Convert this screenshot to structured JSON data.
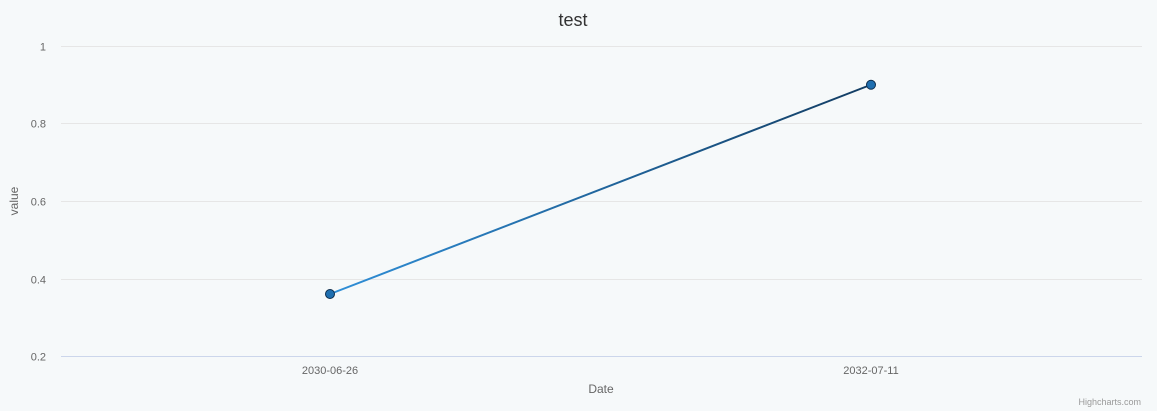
{
  "chart_data": {
    "type": "line",
    "title": "test",
    "xlabel": "Date",
    "ylabel": "value",
    "x": [
      "2030-06-26",
      "2032-07-11"
    ],
    "series": [
      {
        "values": [
          0.36,
          0.9
        ]
      }
    ],
    "ylim": [
      0.2,
      1
    ],
    "yticks": [
      "0.2",
      "0.4",
      "0.6",
      "0.8",
      "1"
    ],
    "xticks": [
      "2030-06-26",
      "2032-07-11"
    ],
    "grid": true,
    "legend": false,
    "colors": {
      "line_start": "#2f8fd8",
      "line_end": "#123c62",
      "marker_fill": "#1f6fb0",
      "marker_stroke": "#0d2d4d",
      "plot_background": "#f6f9fa"
    },
    "credits": "Highcharts.com"
  }
}
